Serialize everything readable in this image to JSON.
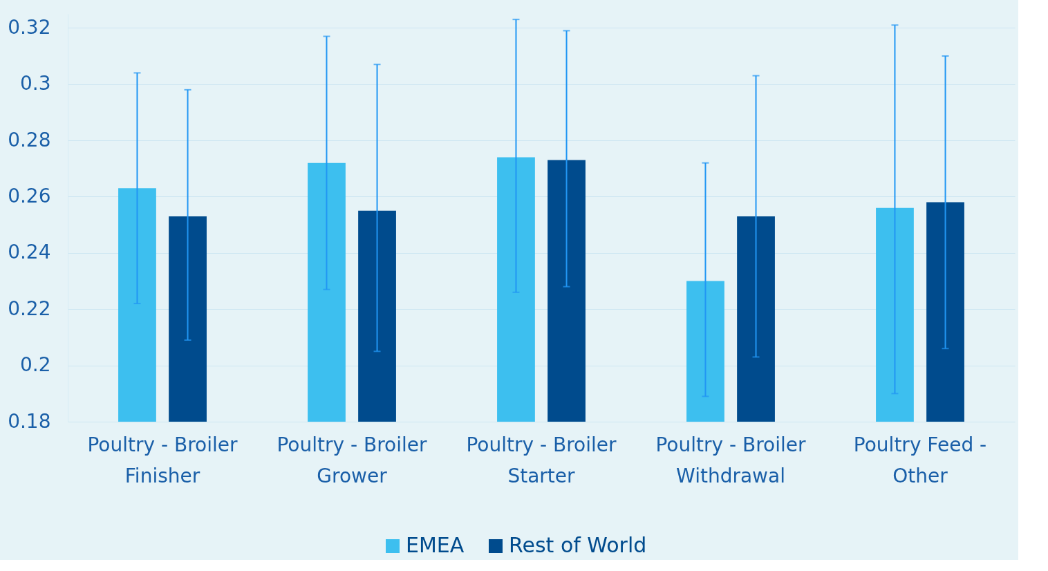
{
  "chart_data": {
    "type": "bar",
    "categories": [
      "Poultry - Broiler Finisher",
      "Poultry - Broiler Grower",
      "Poultry - Broiler Starter",
      "Poultry - Broiler Withdrawal",
      "Poultry Feed - Other"
    ],
    "series": [
      {
        "name": "EMEA",
        "color": "#3dbfef",
        "values": [
          0.263,
          0.272,
          0.274,
          0.23,
          0.256
        ],
        "errors": [
          [
            0.222,
            0.304
          ],
          [
            0.227,
            0.317
          ],
          [
            0.226,
            0.323
          ],
          [
            0.189,
            0.272
          ],
          [
            0.19,
            0.321
          ]
        ]
      },
      {
        "name": "Rest of World",
        "color": "#004b8d",
        "values": [
          0.253,
          0.255,
          0.273,
          0.253,
          0.258
        ],
        "errors": [
          [
            0.209,
            0.298
          ],
          [
            0.205,
            0.307
          ],
          [
            0.228,
            0.319
          ],
          [
            0.203,
            0.303
          ],
          [
            0.206,
            0.31
          ]
        ]
      }
    ],
    "ylim": [
      0.18,
      0.325
    ],
    "yticks": [
      0.18,
      {
        "value": 0.2,
        "label": "0.2"
      },
      0.22,
      0.24,
      0.26,
      0.28,
      {
        "value": 0.3,
        "label": "0.3"
      },
      0.32
    ],
    "grid": "y",
    "legend": "bottom"
  }
}
